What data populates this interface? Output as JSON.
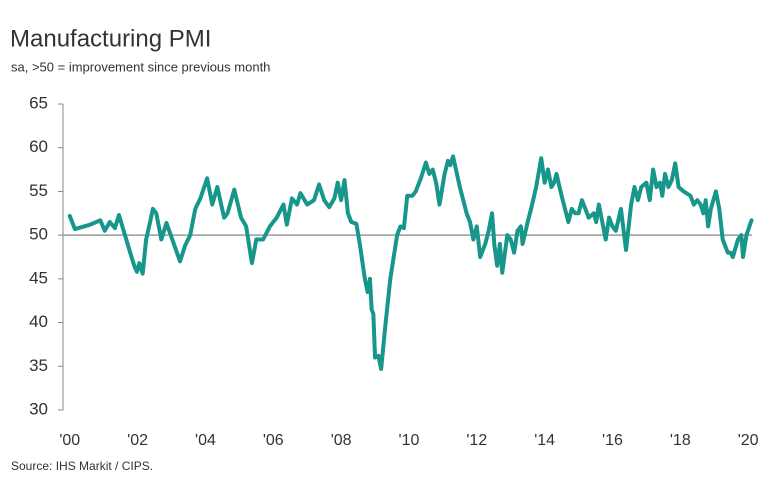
{
  "chart_data": {
    "type": "line",
    "title": "Manufacturing PMI",
    "subtitle": "sa, >50 = improvement since previous month",
    "source": "Source: IHS Markit / CIPS.",
    "color": "#17968b",
    "reference_line": 50,
    "xlim": [
      1999.8,
      2020.35
    ],
    "xticks": [
      {
        "value": 2000,
        "label": "'00"
      },
      {
        "value": 2002,
        "label": "'02"
      },
      {
        "value": 2004,
        "label": "'04"
      },
      {
        "value": 2006,
        "label": "'06"
      },
      {
        "value": 2008,
        "label": "'08"
      },
      {
        "value": 2010,
        "label": "'10"
      },
      {
        "value": 2012,
        "label": "'12"
      },
      {
        "value": 2014,
        "label": "'14"
      },
      {
        "value": 2016,
        "label": "'16"
      },
      {
        "value": 2018,
        "label": "'18"
      },
      {
        "value": 2020,
        "label": "'20"
      }
    ],
    "ylim": [
      30,
      65
    ],
    "yticks": [
      30,
      35,
      40,
      45,
      50,
      55,
      60,
      65
    ],
    "x": [
      2000.0,
      2000.15,
      2000.6,
      2000.9,
      2001.03,
      2001.18,
      2001.33,
      2001.45,
      2001.75,
      2001.9,
      2001.98,
      2002.05,
      2002.15,
      2002.25,
      2002.35,
      2002.45,
      2002.55,
      2002.7,
      2002.85,
      2003.05,
      2003.25,
      2003.4,
      2003.55,
      2003.7,
      2003.85,
      2004.05,
      2004.2,
      2004.35,
      2004.55,
      2004.65,
      2004.85,
      2005.05,
      2005.2,
      2005.37,
      2005.5,
      2005.7,
      2005.9,
      2006.1,
      2006.3,
      2006.4,
      2006.55,
      2006.7,
      2006.8,
      2007.0,
      2007.2,
      2007.35,
      2007.5,
      2007.65,
      2007.8,
      2007.9,
      2008.0,
      2008.1,
      2008.2,
      2008.3,
      2008.45,
      2008.55,
      2008.7,
      2008.78,
      2008.85,
      2008.9,
      2008.95,
      2009.0,
      2009.1,
      2009.18,
      2009.3,
      2009.45,
      2009.55,
      2009.65,
      2009.75,
      2009.85,
      2009.95,
      2010.1,
      2010.2,
      2010.35,
      2010.5,
      2010.6,
      2010.7,
      2010.8,
      2010.9,
      2011.05,
      2011.15,
      2011.22,
      2011.3,
      2011.5,
      2011.7,
      2011.8,
      2011.9,
      2012.0,
      2012.1,
      2012.25,
      2012.35,
      2012.45,
      2012.52,
      2012.6,
      2012.68,
      2012.75,
      2012.9,
      2013.0,
      2013.1,
      2013.2,
      2013.3,
      2013.35,
      2013.5,
      2013.6,
      2013.75,
      2013.9,
      2014.0,
      2014.1,
      2014.2,
      2014.28,
      2014.35,
      2014.5,
      2014.7,
      2014.8,
      2014.9,
      2015.0,
      2015.1,
      2015.2,
      2015.3,
      2015.45,
      2015.52,
      2015.6,
      2015.8,
      2015.9,
      2016.0,
      2016.1,
      2016.25,
      2016.4,
      2016.55,
      2016.65,
      2016.75,
      2016.85,
      2017.0,
      2017.1,
      2017.2,
      2017.3,
      2017.4,
      2017.47,
      2017.55,
      2017.65,
      2017.75,
      2017.85,
      2017.95,
      2018.1,
      2018.3,
      2018.4,
      2018.5,
      2018.6,
      2018.68,
      2018.75,
      2018.82,
      2018.9,
      2019.05,
      2019.15,
      2019.25,
      2019.4,
      2019.48,
      2019.55,
      2019.7,
      2019.8,
      2019.85,
      2019.95,
      2020.1
    ],
    "values": [
      52.2,
      50.7,
      51.2,
      51.7,
      50.5,
      51.5,
      50.8,
      52.3,
      48.4,
      46.5,
      45.8,
      46.8,
      45.6,
      49.5,
      51.2,
      53.0,
      52.5,
      49.5,
      51.4,
      49.2,
      47.0,
      48.8,
      50.0,
      53.0,
      54.2,
      56.5,
      53.5,
      55.5,
      52.0,
      52.5,
      55.2,
      52.0,
      51.0,
      46.8,
      49.5,
      49.5,
      51.0,
      52.0,
      53.5,
      51.2,
      54.2,
      53.5,
      54.8,
      53.5,
      54.0,
      55.8,
      54.0,
      53.2,
      54.2,
      56.0,
      54.0,
      56.3,
      52.5,
      51.5,
      51.3,
      49.0,
      45.0,
      43.5,
      45.0,
      41.5,
      41.0,
      36.0,
      36.2,
      34.7,
      39.5,
      45.0,
      47.5,
      50.0,
      51.0,
      50.8,
      54.5,
      54.5,
      55.0,
      56.5,
      58.3,
      57.0,
      57.5,
      56.0,
      53.5,
      57.0,
      58.5,
      58.0,
      59.0,
      55.5,
      52.5,
      51.5,
      49.5,
      51.0,
      47.5,
      49.0,
      50.5,
      52.5,
      48.8,
      46.5,
      49.0,
      45.7,
      50.0,
      49.5,
      48.0,
      50.5,
      51.0,
      49.0,
      51.5,
      53.0,
      55.5,
      58.8,
      56.0,
      57.5,
      55.5,
      56.0,
      57.0,
      54.5,
      51.5,
      53.0,
      52.5,
      52.5,
      54.0,
      53.0,
      52.0,
      52.5,
      51.5,
      53.5,
      49.5,
      52.0,
      51.0,
      50.5,
      53.0,
      48.3,
      53.5,
      55.5,
      54.0,
      55.5,
      56.0,
      54.0,
      57.5,
      55.5,
      56.0,
      54.5,
      57.0,
      55.5,
      56.3,
      58.2,
      55.5,
      55.0,
      54.5,
      53.5,
      54.0,
      53.5,
      52.5,
      54.0,
      51.0,
      53.0,
      55.0,
      53.0,
      49.5,
      48.0,
      48.0,
      47.5,
      49.5,
      50.0,
      47.5,
      50.0,
      51.7
    ]
  }
}
